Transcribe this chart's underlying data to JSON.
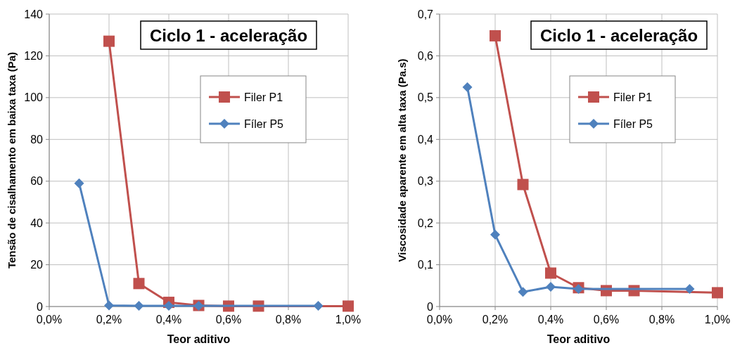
{
  "chart_data": [
    {
      "type": "line",
      "title": "Ciclo 1 - aceleração",
      "xlabel": "Teor aditivo",
      "ylabel": "Tensão de cisalhamento em baixa taxa (Pa)",
      "xlim": [
        0,
        1
      ],
      "xticks": [
        {
          "value": 0,
          "label": "0,0%"
        },
        {
          "value": 0.2,
          "label": "0,2%"
        },
        {
          "value": 0.4,
          "label": "0,4%"
        },
        {
          "value": 0.6,
          "label": "0,6%"
        },
        {
          "value": 0.8,
          "label": "0,8%"
        },
        {
          "value": 1,
          "label": "1,0%"
        }
      ],
      "ylim": [
        0,
        140
      ],
      "yticks": [
        0,
        20,
        40,
        60,
        80,
        100,
        120,
        140
      ],
      "grid": true,
      "legend": "top right",
      "series": [
        {
          "name": "Filer P1",
          "color": "#c0504d",
          "marker": "square",
          "x": [
            0.2,
            0.3,
            0.4,
            0.5,
            0.6,
            0.7,
            1.0
          ],
          "values": [
            127,
            11,
            2,
            0.5,
            0.2,
            0.2,
            0.2
          ]
        },
        {
          "name": "Fíler P5",
          "color": "#4f81bd",
          "marker": "diamond",
          "x": [
            0.1,
            0.2,
            0.3,
            0.4,
            0.5,
            0.9
          ],
          "values": [
            59,
            0.5,
            0.3,
            0.3,
            0.3,
            0.3
          ]
        }
      ]
    },
    {
      "type": "line",
      "title": "Ciclo 1 - aceleração",
      "xlabel": "Teor aditivo",
      "ylabel": "Viscosidade aparente em alta taxa (Pa.s)",
      "xlim": [
        0,
        1
      ],
      "xticks": [
        {
          "value": 0,
          "label": "0,0%"
        },
        {
          "value": 0.2,
          "label": "0,2%"
        },
        {
          "value": 0.4,
          "label": "0,4%"
        },
        {
          "value": 0.6,
          "label": "0,6%"
        },
        {
          "value": 0.8,
          "label": "0,8%"
        },
        {
          "value": 1,
          "label": "1,0%"
        }
      ],
      "ylim": [
        0,
        0.7
      ],
      "yticks": [
        {
          "value": 0,
          "label": "0"
        },
        {
          "value": 0.1,
          "label": "0,1"
        },
        {
          "value": 0.2,
          "label": "0,2"
        },
        {
          "value": 0.3,
          "label": "0,3"
        },
        {
          "value": 0.4,
          "label": "0,4"
        },
        {
          "value": 0.5,
          "label": "0,5"
        },
        {
          "value": 0.6,
          "label": "0,6"
        },
        {
          "value": 0.7,
          "label": "0,7"
        }
      ],
      "grid": true,
      "legend": "top right",
      "series": [
        {
          "name": "Filer P1",
          "color": "#c0504d",
          "marker": "square",
          "x": [
            0.2,
            0.3,
            0.4,
            0.5,
            0.6,
            0.7,
            1.0
          ],
          "values": [
            0.648,
            0.292,
            0.08,
            0.045,
            0.038,
            0.038,
            0.033
          ]
        },
        {
          "name": "Fíler P5",
          "color": "#4f81bd",
          "marker": "diamond",
          "x": [
            0.1,
            0.2,
            0.3,
            0.4,
            0.5,
            0.9
          ],
          "values": [
            0.525,
            0.172,
            0.035,
            0.047,
            0.042,
            0.042
          ]
        }
      ]
    }
  ]
}
